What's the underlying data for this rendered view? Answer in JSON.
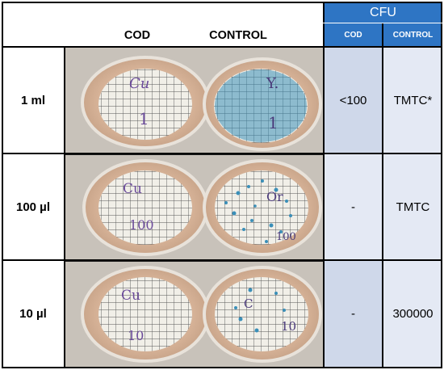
{
  "header": {
    "cfu": "CFU",
    "cfu_cod": "COD",
    "cfu_control": "CONTROL",
    "col_cod": "COD",
    "col_control": "CONTROL"
  },
  "rows": [
    {
      "label": "1 ml",
      "cod": "<100",
      "control": "TMTC*",
      "plate_cod_marking": "Cu 1",
      "plate_control_marking": "Y 1"
    },
    {
      "label": "100 µl",
      "cod": "-",
      "control": "TMTC",
      "plate_cod_marking": "Cu 100",
      "plate_control_marking": "Or 100"
    },
    {
      "label": "10 µl",
      "cod": "-",
      "control": "300000",
      "plate_cod_marking": "Cu 10",
      "plate_control_marking": "Control 10"
    }
  ],
  "colors": {
    "header_blue": "#2e75c4",
    "cell_dark": "#cfd8ea",
    "cell_light": "#e4e9f4",
    "colony_blue": "#3a8fb8"
  }
}
